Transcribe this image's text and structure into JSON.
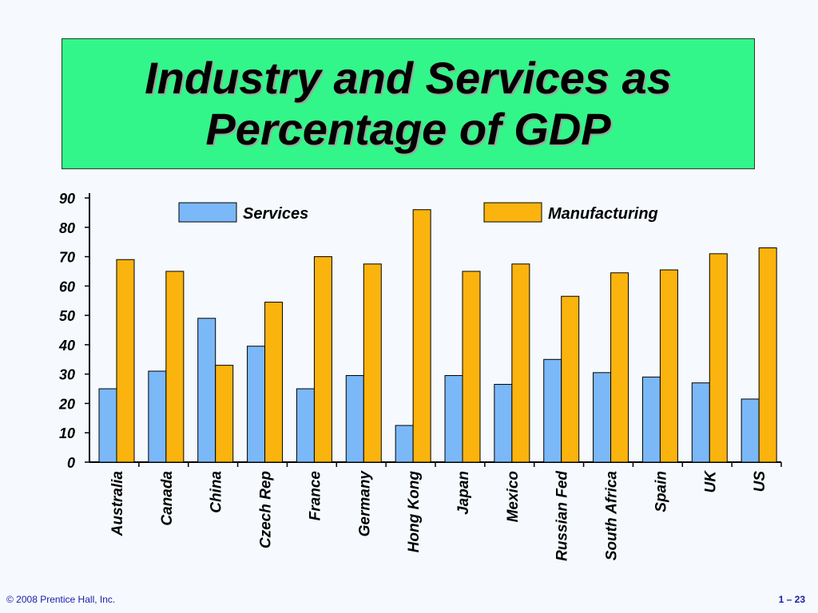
{
  "title": {
    "line1": "Industry and Services as",
    "line2": "Percentage of GDP"
  },
  "footer": {
    "copyright": "© 2008 Prentice Hall, Inc.",
    "page": "1 – 23"
  },
  "chart_data": {
    "type": "bar",
    "categories": [
      "Australia",
      "Canada",
      "China",
      "Czech Rep",
      "France",
      "Germany",
      "Hong Kong",
      "Japan",
      "Mexico",
      "Russian Fed",
      "South Africa",
      "Spain",
      "UK",
      "US"
    ],
    "series": [
      {
        "name": "Services",
        "color": "#7ab8f8",
        "values": [
          25,
          31,
          49,
          39.5,
          25,
          29.5,
          12.5,
          29.5,
          26.5,
          35,
          30.5,
          29,
          27,
          21.5
        ]
      },
      {
        "name": "Manufacturing",
        "color": "#fbb30e",
        "values": [
          69,
          65,
          33,
          54.5,
          70,
          67.5,
          86,
          65,
          67.5,
          56.5,
          64.5,
          65.5,
          71,
          73
        ]
      }
    ],
    "ylim": [
      0,
      90
    ],
    "yticks": [
      0,
      10,
      20,
      30,
      40,
      50,
      60,
      70,
      80,
      90
    ],
    "grid": false,
    "legend": "top"
  }
}
